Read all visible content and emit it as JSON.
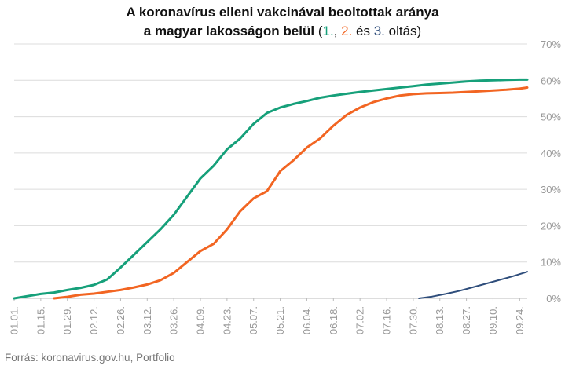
{
  "title": {
    "line1": "A koronavírus elleni vakcinával beoltottak aránya",
    "line2_prefix": "a magyar lakosságon belül",
    "open_paren": " (",
    "dose1": "1.",
    "sep1": ", ",
    "dose2": "2.",
    "sep2": " és ",
    "dose3": "3.",
    "suffix": " oltás)"
  },
  "source": "Forrás: koronavirus.gov.hu, Portfolio",
  "colors": {
    "dose1": "#16a07a",
    "dose2": "#f26522",
    "dose3": "#2e4d7b",
    "grid": "#dcdcdc",
    "axis": "#bbbbbb"
  },
  "chart_data": {
    "type": "line",
    "x_tick_labels": [
      "01.01.",
      "01.15.",
      "01.29.",
      "02.12.",
      "02.26.",
      "03.12.",
      "03.26.",
      "04.09.",
      "04.23.",
      "05.07.",
      "05.21.",
      "06.04.",
      "06.18.",
      "07.02.",
      "07.16.",
      "07.30.",
      "08.13.",
      "08.27.",
      "09.10.",
      "09.24."
    ],
    "y_tick_labels": [
      "0%",
      "10%",
      "20%",
      "30%",
      "40%",
      "50%",
      "60%",
      "70%"
    ],
    "ylim": [
      0,
      70
    ],
    "grid": true,
    "x_unit": "day of year 2021 (day 0 = 01.01.)",
    "series": [
      {
        "name": "1.",
        "color": "#16a07a",
        "x": [
          0,
          7,
          14,
          21,
          28,
          35,
          42,
          49,
          56,
          63,
          70,
          77,
          84,
          91,
          98,
          105,
          112,
          119,
          126,
          133,
          140,
          147,
          154,
          161,
          168,
          175,
          182,
          189,
          196,
          203,
          210,
          217,
          224,
          231,
          238,
          245,
          252,
          259,
          266,
          270
        ],
        "y": [
          0,
          0.6,
          1.2,
          1.6,
          2.3,
          2.9,
          3.7,
          5.2,
          8.5,
          12,
          15.5,
          19,
          23,
          28,
          33,
          36.5,
          41,
          44,
          48,
          51,
          52.5,
          53.5,
          54.3,
          55.2,
          55.8,
          56.3,
          56.8,
          57.2,
          57.6,
          58,
          58.4,
          58.8,
          59.1,
          59.4,
          59.7,
          59.9,
          60,
          60.1,
          60.2,
          60.2
        ]
      },
      {
        "name": "2.",
        "color": "#f26522",
        "x": [
          21,
          28,
          35,
          42,
          49,
          56,
          63,
          70,
          77,
          84,
          91,
          98,
          105,
          112,
          119,
          126,
          133,
          140,
          147,
          154,
          161,
          168,
          175,
          182,
          189,
          196,
          203,
          210,
          217,
          224,
          231,
          238,
          245,
          252,
          259,
          266,
          270
        ],
        "y": [
          0,
          0.4,
          1,
          1.3,
          1.8,
          2.3,
          3,
          3.8,
          5,
          7,
          10,
          13,
          15,
          19,
          24,
          27.5,
          29.5,
          35,
          38,
          41.5,
          44,
          47.5,
          50.5,
          52.5,
          54,
          55,
          55.8,
          56.2,
          56.4,
          56.5,
          56.6,
          56.8,
          57,
          57.2,
          57.4,
          57.7,
          58
        ]
      },
      {
        "name": "3.",
        "color": "#2e4d7b",
        "x": [
          213,
          220,
          227,
          234,
          241,
          248,
          255,
          262,
          270
        ],
        "y": [
          0,
          0.5,
          1.2,
          2,
          3,
          4,
          5,
          6,
          7.3
        ]
      }
    ]
  }
}
